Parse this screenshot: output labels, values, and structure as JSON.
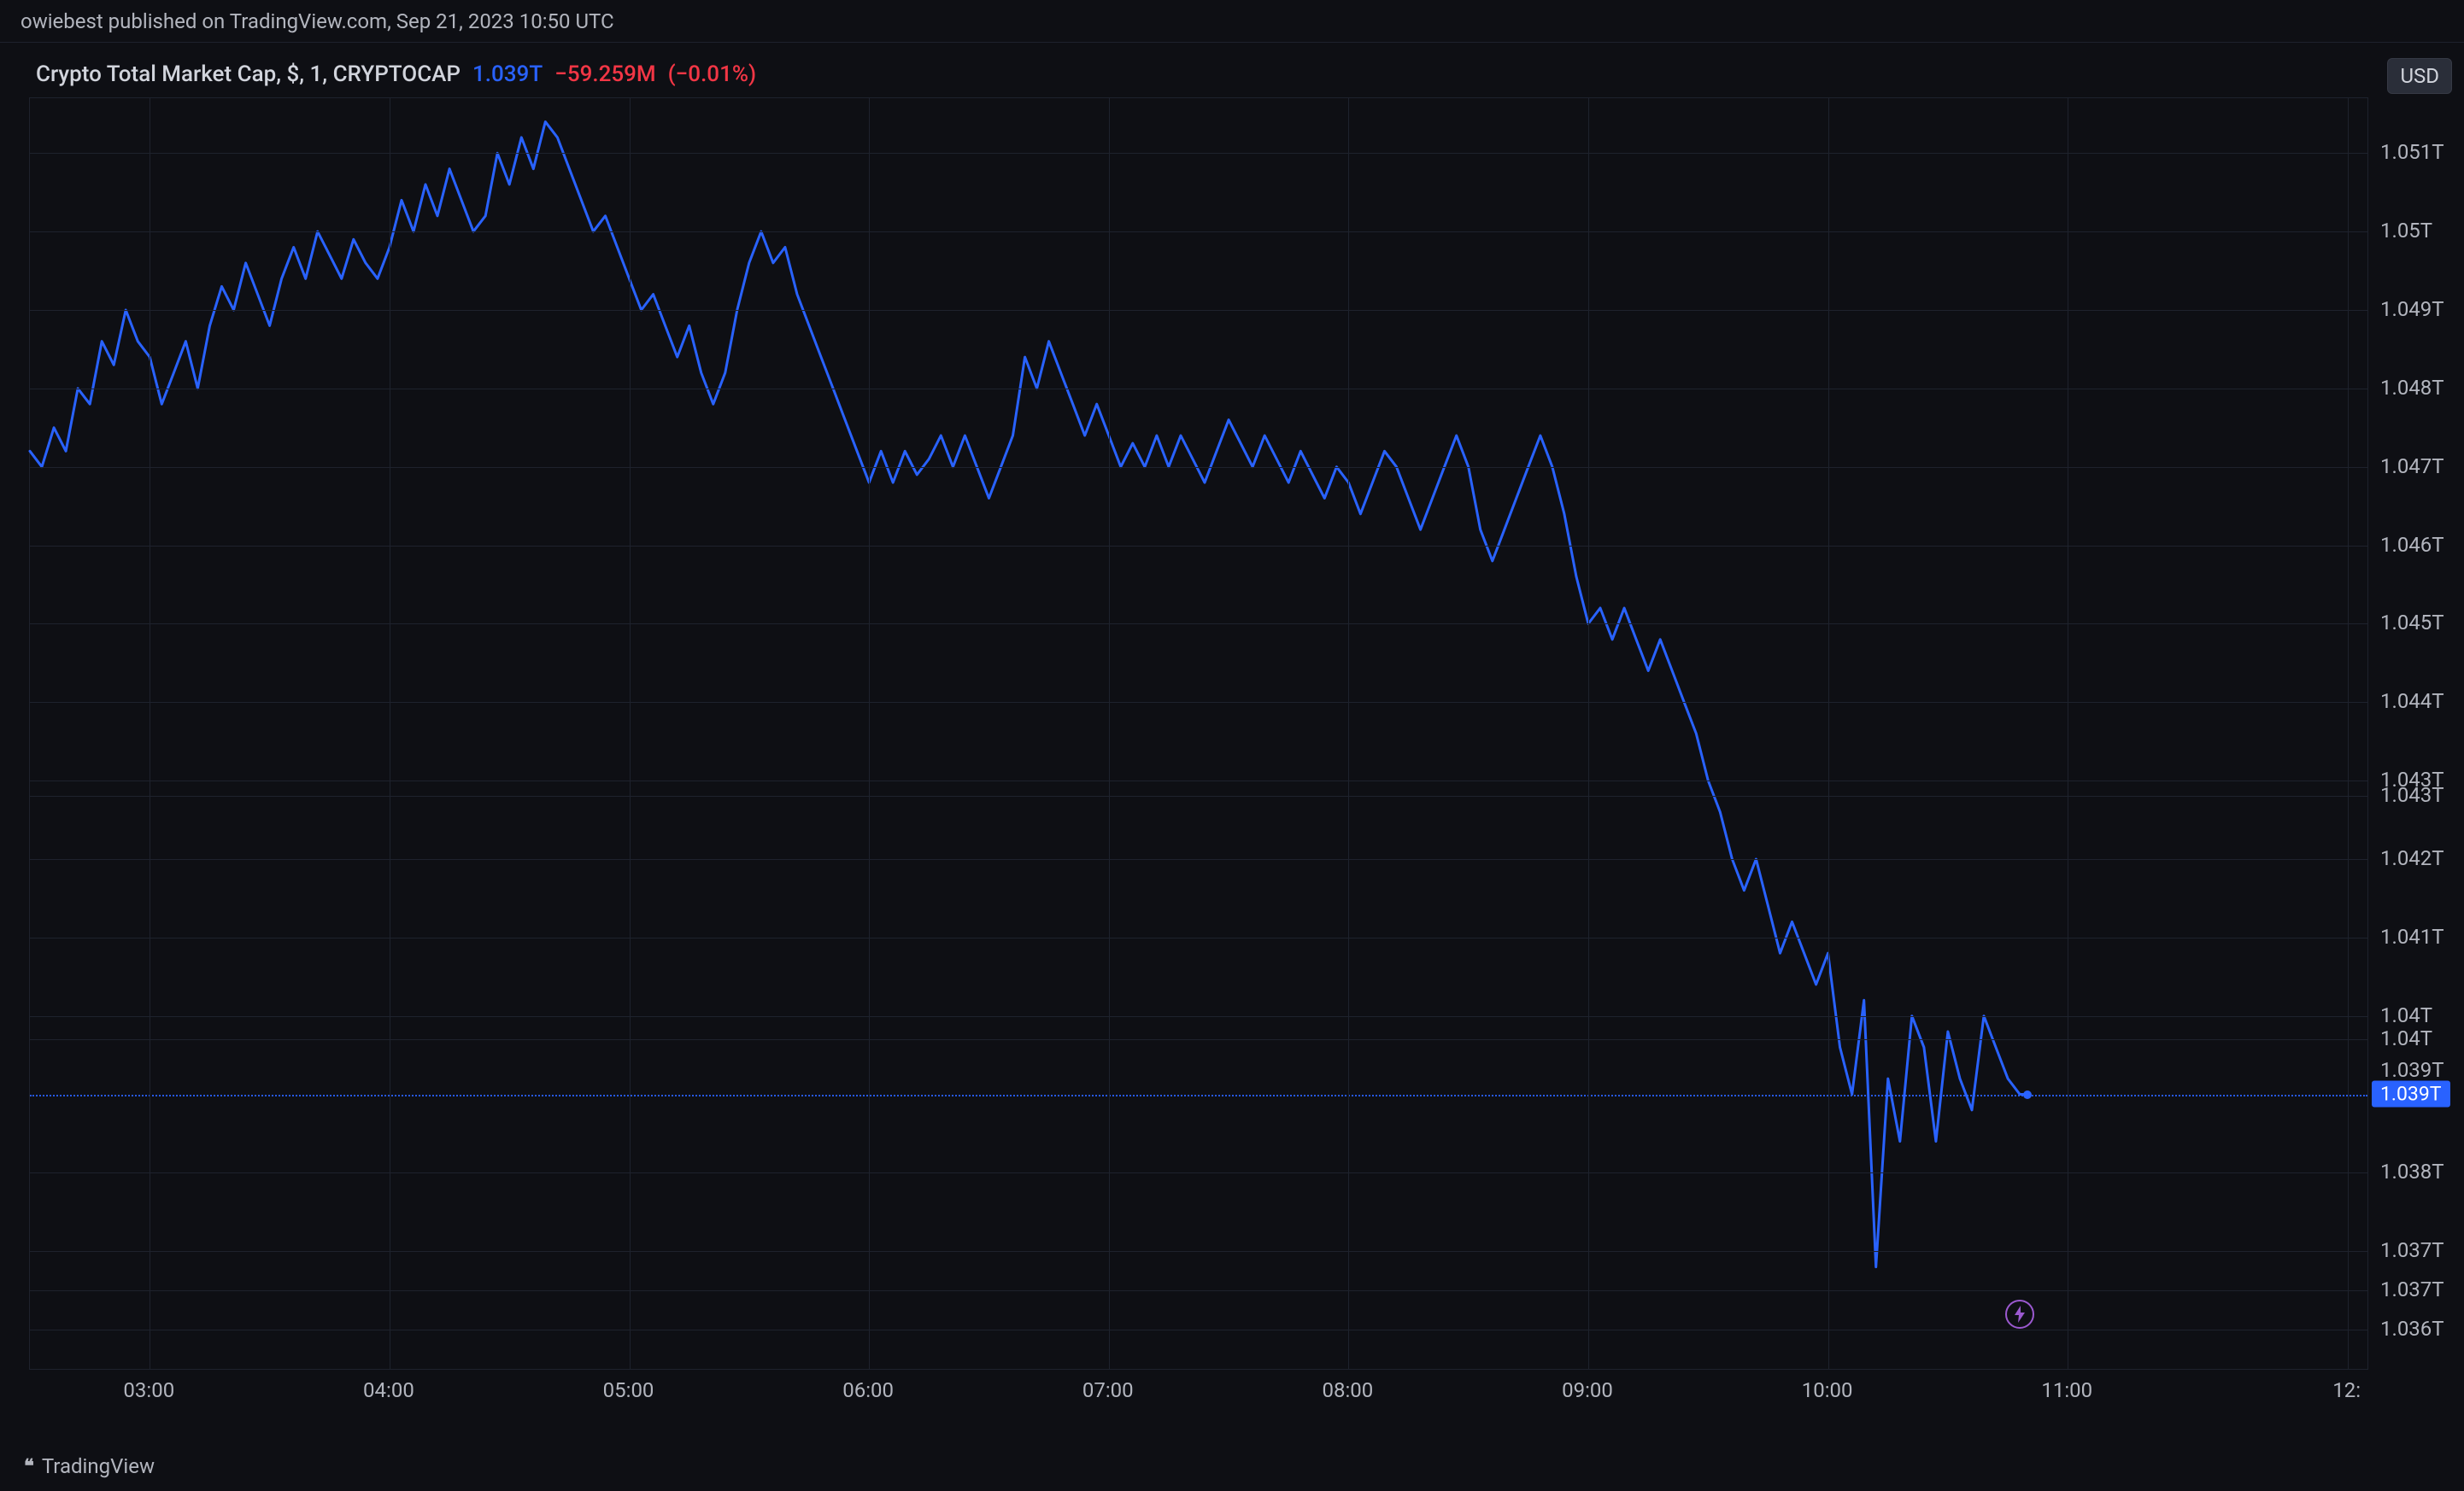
{
  "header": {
    "published_text": "owiebest published on TradingView.com, Sep 21, 2023 10:50 UTC"
  },
  "legend": {
    "title": "Crypto Total Market Cap, $, 1, CRYPTOCAP",
    "last_value": "1.039T",
    "change_abs": "−59.259M",
    "change_pct": "(−0.01%)",
    "value_color": "#2962ff",
    "change_color": "#f23645"
  },
  "currency_badge": "USD",
  "footer": {
    "brand": "TradingView"
  },
  "chart": {
    "type": "line",
    "line_color": "#2962ff",
    "line_width": 3,
    "background_color": "#0e0f14",
    "grid_color": "#1e222d",
    "x_label_color": "#b2b5be",
    "y_label_color": "#b2b5be",
    "y_min": 1.0355,
    "y_max": 1.0517,
    "y_ticks": [
      {
        "v": 1.051,
        "label": "1.051T"
      },
      {
        "v": 1.05,
        "label": "1.05T"
      },
      {
        "v": 1.049,
        "label": "1.049T"
      },
      {
        "v": 1.048,
        "label": "1.048T"
      },
      {
        "v": 1.047,
        "label": "1.047T"
      },
      {
        "v": 1.046,
        "label": "1.046T"
      },
      {
        "v": 1.045,
        "label": "1.045T"
      },
      {
        "v": 1.044,
        "label": "1.044T"
      },
      {
        "v": 1.043,
        "label": "1.043T"
      },
      {
        "v": 1.0428,
        "label": "1.043T"
      },
      {
        "v": 1.042,
        "label": "1.042T"
      },
      {
        "v": 1.041,
        "label": "1.041T"
      },
      {
        "v": 1.04,
        "label": "1.04T"
      },
      {
        "v": 1.0397,
        "label": "1.04T"
      },
      {
        "v": 1.038,
        "label": "1.038T"
      },
      {
        "v": 1.037,
        "label": "1.037T"
      },
      {
        "v": 1.0365,
        "label": "1.037T"
      },
      {
        "v": 1.036,
        "label": "1.036T"
      }
    ],
    "x_min": 150,
    "x_max": 735,
    "x_ticks": [
      {
        "t": 180,
        "label": "03:00"
      },
      {
        "t": 240,
        "label": "04:00"
      },
      {
        "t": 300,
        "label": "05:00"
      },
      {
        "t": 360,
        "label": "06:00"
      },
      {
        "t": 420,
        "label": "07:00"
      },
      {
        "t": 480,
        "label": "08:00"
      },
      {
        "t": 540,
        "label": "09:00"
      },
      {
        "t": 600,
        "label": "10:00"
      },
      {
        "t": 660,
        "label": "11:00"
      },
      {
        "t": 730,
        "label": "12:"
      }
    ],
    "last_price": {
      "value": 1.039,
      "label": "1.039T",
      "badge_bg": "#2962ff"
    },
    "overlap_label": {
      "value": 1.0393,
      "label": "1.039T",
      "color": "#b2b5be"
    },
    "end_point": {
      "t": 650,
      "v": 1.039
    },
    "lightning_icon": {
      "t": 648,
      "v": 1.0362
    },
    "series": [
      [
        150,
        1.0472
      ],
      [
        153,
        1.047
      ],
      [
        156,
        1.0475
      ],
      [
        159,
        1.0472
      ],
      [
        162,
        1.048
      ],
      [
        165,
        1.0478
      ],
      [
        168,
        1.0486
      ],
      [
        171,
        1.0483
      ],
      [
        174,
        1.049
      ],
      [
        177,
        1.0486
      ],
      [
        180,
        1.0484
      ],
      [
        183,
        1.0478
      ],
      [
        186,
        1.0482
      ],
      [
        189,
        1.0486
      ],
      [
        192,
        1.048
      ],
      [
        195,
        1.0488
      ],
      [
        198,
        1.0493
      ],
      [
        201,
        1.049
      ],
      [
        204,
        1.0496
      ],
      [
        207,
        1.0492
      ],
      [
        210,
        1.0488
      ],
      [
        213,
        1.0494
      ],
      [
        216,
        1.0498
      ],
      [
        219,
        1.0494
      ],
      [
        222,
        1.05
      ],
      [
        225,
        1.0497
      ],
      [
        228,
        1.0494
      ],
      [
        231,
        1.0499
      ],
      [
        234,
        1.0496
      ],
      [
        237,
        1.0494
      ],
      [
        240,
        1.0498
      ],
      [
        243,
        1.0504
      ],
      [
        246,
        1.05
      ],
      [
        249,
        1.0506
      ],
      [
        252,
        1.0502
      ],
      [
        255,
        1.0508
      ],
      [
        258,
        1.0504
      ],
      [
        261,
        1.05
      ],
      [
        264,
        1.0502
      ],
      [
        267,
        1.051
      ],
      [
        270,
        1.0506
      ],
      [
        273,
        1.0512
      ],
      [
        276,
        1.0508
      ],
      [
        279,
        1.0514
      ],
      [
        282,
        1.0512
      ],
      [
        285,
        1.0508
      ],
      [
        288,
        1.0504
      ],
      [
        291,
        1.05
      ],
      [
        294,
        1.0502
      ],
      [
        297,
        1.0498
      ],
      [
        300,
        1.0494
      ],
      [
        303,
        1.049
      ],
      [
        306,
        1.0492
      ],
      [
        309,
        1.0488
      ],
      [
        312,
        1.0484
      ],
      [
        315,
        1.0488
      ],
      [
        318,
        1.0482
      ],
      [
        321,
        1.0478
      ],
      [
        324,
        1.0482
      ],
      [
        327,
        1.049
      ],
      [
        330,
        1.0496
      ],
      [
        333,
        1.05
      ],
      [
        336,
        1.0496
      ],
      [
        339,
        1.0498
      ],
      [
        342,
        1.0492
      ],
      [
        345,
        1.0488
      ],
      [
        348,
        1.0484
      ],
      [
        351,
        1.048
      ],
      [
        354,
        1.0476
      ],
      [
        357,
        1.0472
      ],
      [
        360,
        1.0468
      ],
      [
        363,
        1.0472
      ],
      [
        366,
        1.0468
      ],
      [
        369,
        1.0472
      ],
      [
        372,
        1.0469
      ],
      [
        375,
        1.0471
      ],
      [
        378,
        1.0474
      ],
      [
        381,
        1.047
      ],
      [
        384,
        1.0474
      ],
      [
        387,
        1.047
      ],
      [
        390,
        1.0466
      ],
      [
        393,
        1.047
      ],
      [
        396,
        1.0474
      ],
      [
        399,
        1.0484
      ],
      [
        402,
        1.048
      ],
      [
        405,
        1.0486
      ],
      [
        408,
        1.0482
      ],
      [
        411,
        1.0478
      ],
      [
        414,
        1.0474
      ],
      [
        417,
        1.0478
      ],
      [
        420,
        1.0474
      ],
      [
        423,
        1.047
      ],
      [
        426,
        1.0473
      ],
      [
        429,
        1.047
      ],
      [
        432,
        1.0474
      ],
      [
        435,
        1.047
      ],
      [
        438,
        1.0474
      ],
      [
        441,
        1.0471
      ],
      [
        444,
        1.0468
      ],
      [
        447,
        1.0472
      ],
      [
        450,
        1.0476
      ],
      [
        453,
        1.0473
      ],
      [
        456,
        1.047
      ],
      [
        459,
        1.0474
      ],
      [
        462,
        1.0471
      ],
      [
        465,
        1.0468
      ],
      [
        468,
        1.0472
      ],
      [
        471,
        1.0469
      ],
      [
        474,
        1.0466
      ],
      [
        477,
        1.047
      ],
      [
        480,
        1.0468
      ],
      [
        483,
        1.0464
      ],
      [
        486,
        1.0468
      ],
      [
        489,
        1.0472
      ],
      [
        492,
        1.047
      ],
      [
        495,
        1.0466
      ],
      [
        498,
        1.0462
      ],
      [
        501,
        1.0466
      ],
      [
        504,
        1.047
      ],
      [
        507,
        1.0474
      ],
      [
        510,
        1.047
      ],
      [
        513,
        1.0462
      ],
      [
        516,
        1.0458
      ],
      [
        519,
        1.0462
      ],
      [
        522,
        1.0466
      ],
      [
        525,
        1.047
      ],
      [
        528,
        1.0474
      ],
      [
        531,
        1.047
      ],
      [
        534,
        1.0464
      ],
      [
        537,
        1.0456
      ],
      [
        540,
        1.045
      ],
      [
        543,
        1.0452
      ],
      [
        546,
        1.0448
      ],
      [
        549,
        1.0452
      ],
      [
        552,
        1.0448
      ],
      [
        555,
        1.0444
      ],
      [
        558,
        1.0448
      ],
      [
        561,
        1.0444
      ],
      [
        564,
        1.044
      ],
      [
        567,
        1.0436
      ],
      [
        570,
        1.043
      ],
      [
        573,
        1.0426
      ],
      [
        576,
        1.042
      ],
      [
        579,
        1.0416
      ],
      [
        582,
        1.042
      ],
      [
        585,
        1.0414
      ],
      [
        588,
        1.0408
      ],
      [
        591,
        1.0412
      ],
      [
        594,
        1.0408
      ],
      [
        597,
        1.0404
      ],
      [
        600,
        1.0408
      ],
      [
        603,
        1.0396
      ],
      [
        606,
        1.039
      ],
      [
        609,
        1.0402
      ],
      [
        612,
        1.0368
      ],
      [
        615,
        1.0392
      ],
      [
        618,
        1.0384
      ],
      [
        621,
        1.04
      ],
      [
        624,
        1.0396
      ],
      [
        627,
        1.0384
      ],
      [
        630,
        1.0398
      ],
      [
        633,
        1.0392
      ],
      [
        636,
        1.0388
      ],
      [
        639,
        1.04
      ],
      [
        642,
        1.0396
      ],
      [
        645,
        1.0392
      ],
      [
        648,
        1.039
      ],
      [
        650,
        1.039
      ]
    ]
  }
}
